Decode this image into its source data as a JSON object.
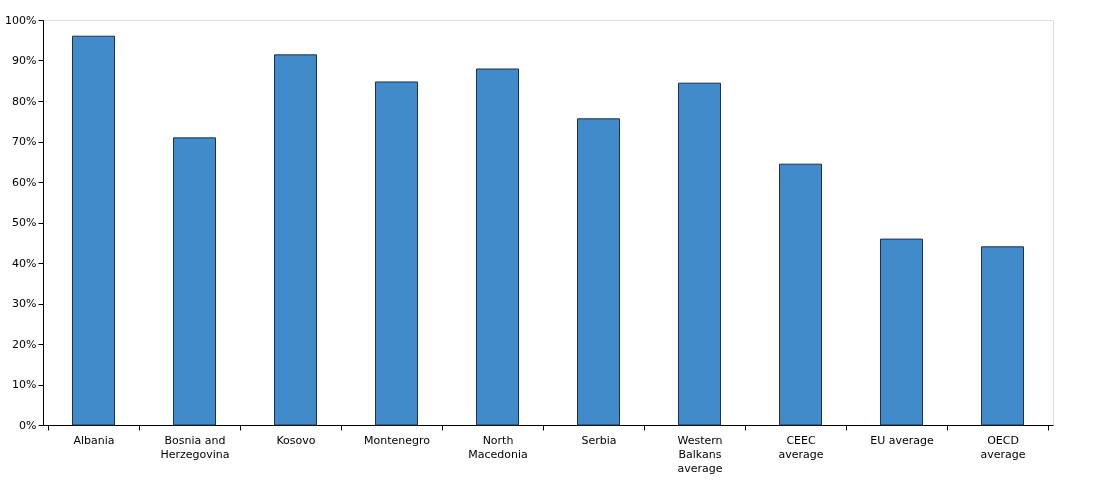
{
  "chart_data": {
    "type": "bar",
    "categories": [
      "Albania",
      "Bosnia and Herzegovina",
      "Kosovo",
      "Montenegro",
      "North Macedonia",
      "Serbia",
      "Western Balkans average",
      "CEEC average",
      "EU average",
      "OECD average"
    ],
    "values": [
      96.0,
      70.9,
      91.4,
      84.7,
      87.9,
      75.6,
      84.4,
      64.4,
      45.9,
      44.0
    ],
    "color": "#428bca",
    "ylim": [
      0,
      100
    ],
    "yticks": [
      {
        "value": 0,
        "label": "0%"
      },
      {
        "value": 10,
        "label": "10%"
      },
      {
        "value": 20,
        "label": "20%"
      },
      {
        "value": 30,
        "label": "30%"
      },
      {
        "value": 40,
        "label": "40%"
      },
      {
        "value": 50,
        "label": "50%"
      },
      {
        "value": 60,
        "label": "60%"
      },
      {
        "value": 70,
        "label": "70%"
      },
      {
        "value": 80,
        "label": "80%"
      },
      {
        "value": 90,
        "label": "90%"
      },
      {
        "value": 100,
        "label": "100%"
      }
    ],
    "grid": false
  }
}
